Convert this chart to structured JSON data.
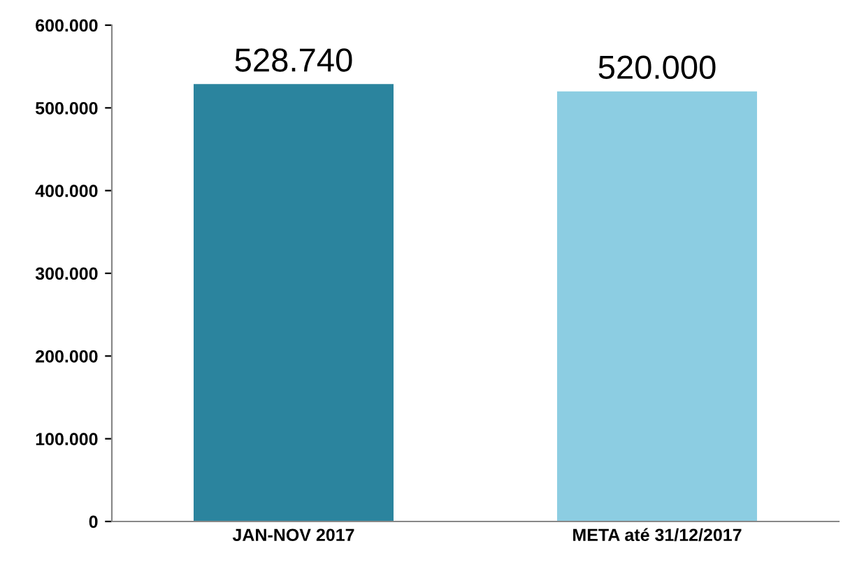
{
  "chart_data": {
    "type": "bar",
    "categories": [
      "JAN-NOV 2017",
      "META até 31/12/2017"
    ],
    "values": [
      528740,
      520000
    ],
    "colors": [
      "#2b849e",
      "#8ccde2"
    ],
    "value_labels": [
      "528.740",
      "520.000"
    ],
    "ylim": [
      0,
      600000
    ],
    "yticks": [
      {
        "value": 0,
        "label": "0"
      },
      {
        "value": 100000,
        "label": "100.000"
      },
      {
        "value": 200000,
        "label": "200.000"
      },
      {
        "value": 300000,
        "label": "300.000"
      },
      {
        "value": 400000,
        "label": "400.000"
      },
      {
        "value": 500000,
        "label": "500.000"
      },
      {
        "value": 600000,
        "label": "600.000"
      }
    ],
    "grid": false,
    "legend": false
  }
}
